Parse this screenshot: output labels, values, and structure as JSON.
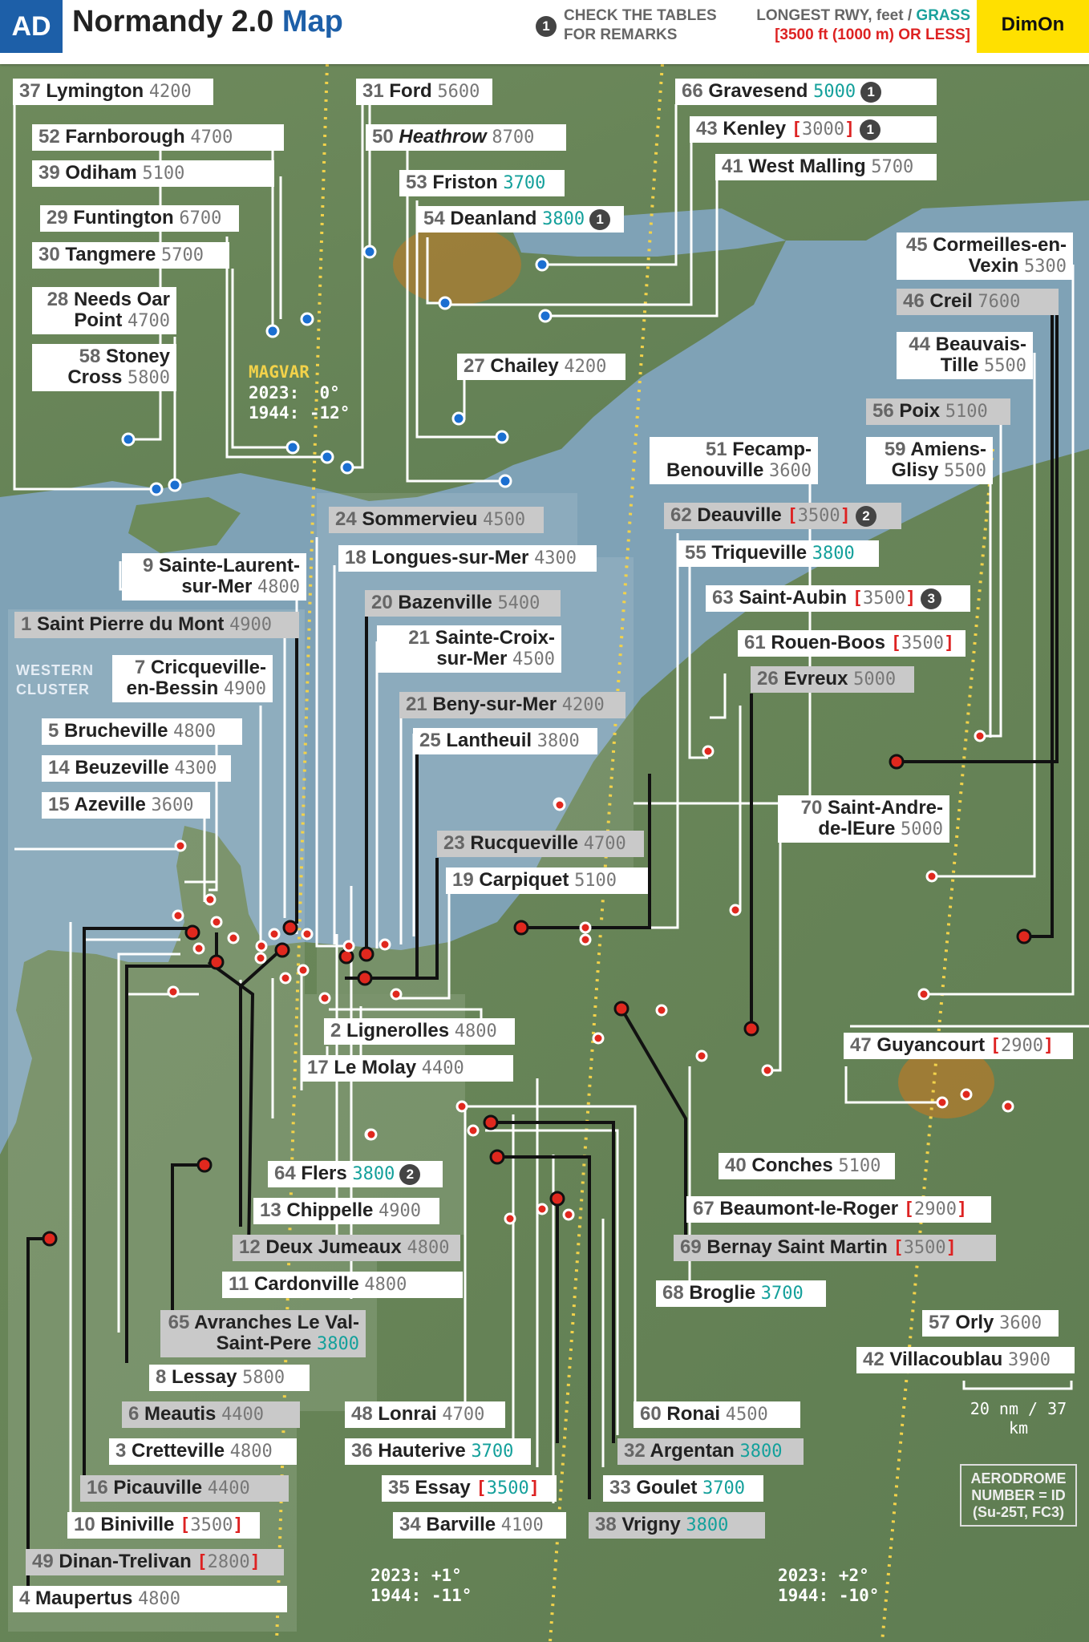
{
  "header": {
    "badge": "AD",
    "title_main": "Normandy 2.0",
    "title_accent": "Map",
    "note_number": "1",
    "note_line1": "CHECK THE TABLES",
    "note_line2": "FOR REMARKS",
    "rwy_line1_a": "LONGEST RWY, feet /",
    "rwy_line1_b": "GRASS",
    "rwy_line2": "[3500 ft (1000 m) OR LESS]",
    "brand": "DimOn"
  },
  "magvar": {
    "label": "MAGVAR",
    "west": "2023:  0°\n1944: -12°",
    "mid": "2023: +1°\n1944: -11°",
    "east": "2023: +2°\n1944: -10°"
  },
  "western_cluster": "WESTERN\nCLUSTER",
  "scale": "20 nm / 37 km",
  "legend": "AERODROME\nNUMBER = ID\n(Su-25T, FC3)",
  "colors": {
    "sea": "#7ea1b5",
    "land": "#6f8a5a",
    "accent": "#1d5fa8",
    "grass": "#14a09b",
    "short": "#d22222",
    "brand": "#ffe000"
  },
  "airfields": [
    {
      "id": "37",
      "name": "Lymington",
      "rwy": "4200",
      "type": "paved"
    },
    {
      "id": "52",
      "name": "Farnborough",
      "rwy": "4700",
      "type": "paved"
    },
    {
      "id": "39",
      "name": "Odiham",
      "rwy": "5100",
      "type": "paved"
    },
    {
      "id": "29",
      "name": "Funtington",
      "rwy": "6700",
      "type": "paved"
    },
    {
      "id": "30",
      "name": "Tangmere",
      "rwy": "5700",
      "type": "paved"
    },
    {
      "id": "28",
      "name": "Needs Oar Point",
      "rwy": "4700",
      "type": "paved"
    },
    {
      "id": "58",
      "name": "Stoney Cross",
      "rwy": "5800",
      "type": "paved"
    },
    {
      "id": "31",
      "name": "Ford",
      "rwy": "5600",
      "type": "paved"
    },
    {
      "id": "50",
      "name": "Heathrow",
      "rwy": "8700",
      "type": "paved"
    },
    {
      "id": "53",
      "name": "Friston",
      "rwy": "3700",
      "type": "grass"
    },
    {
      "id": "54",
      "name": "Deanland",
      "rwy": "3800",
      "type": "grass",
      "remark": "1"
    },
    {
      "id": "27",
      "name": "Chailey",
      "rwy": "4200",
      "type": "paved"
    },
    {
      "id": "66",
      "name": "Gravesend",
      "rwy": "5000",
      "type": "grass",
      "remark": "1"
    },
    {
      "id": "43",
      "name": "Kenley",
      "rwy": "3000",
      "type": "short",
      "remark": "1"
    },
    {
      "id": "41",
      "name": "West Malling",
      "rwy": "5700",
      "type": "paved"
    },
    {
      "id": "45",
      "name": "Cormeilles-en-Vexin",
      "rwy": "5300",
      "type": "paved"
    },
    {
      "id": "46",
      "name": "Creil",
      "rwy": "7600",
      "type": "paved"
    },
    {
      "id": "44",
      "name": "Beauvais-Tille",
      "rwy": "5500",
      "type": "paved"
    },
    {
      "id": "56",
      "name": "Poix",
      "rwy": "5100",
      "type": "paved"
    },
    {
      "id": "59",
      "name": "Amiens-Glisy",
      "rwy": "5500",
      "type": "paved"
    },
    {
      "id": "51",
      "name": "Fecamp-Benouville",
      "rwy": "3600",
      "type": "paved"
    },
    {
      "id": "62",
      "name": "Deauville",
      "rwy": "3500",
      "type": "short",
      "remark": "2"
    },
    {
      "id": "55",
      "name": "Triqueville",
      "rwy": "3800",
      "type": "grass"
    },
    {
      "id": "63",
      "name": "Saint-Aubin",
      "rwy": "3500",
      "type": "short",
      "remark": "3"
    },
    {
      "id": "61",
      "name": "Rouen-Boos",
      "rwy": "3500",
      "type": "short"
    },
    {
      "id": "26",
      "name": "Evreux",
      "rwy": "5000",
      "type": "paved"
    },
    {
      "id": "70",
      "name": "Saint-Andre-de-lEure",
      "rwy": "5000",
      "type": "paved"
    },
    {
      "id": "24",
      "name": "Sommervieu",
      "rwy": "4500",
      "type": "paved"
    },
    {
      "id": "18",
      "name": "Longues-sur-Mer",
      "rwy": "4300",
      "type": "paved"
    },
    {
      "id": "20",
      "name": "Bazenville",
      "rwy": "5400",
      "type": "paved"
    },
    {
      "id": "21",
      "name": "Sainte-Croix-sur-Mer",
      "rwy": "4500",
      "type": "paved"
    },
    {
      "id": "21b",
      "name": "Beny-sur-Mer",
      "rwy": "4200",
      "type": "paved"
    },
    {
      "id": "25",
      "name": "Lantheuil",
      "rwy": "3800",
      "type": "paved"
    },
    {
      "id": "23",
      "name": "Rucqueville",
      "rwy": "4700",
      "type": "paved"
    },
    {
      "id": "19",
      "name": "Carpiquet",
      "rwy": "5100",
      "type": "paved"
    },
    {
      "id": "9",
      "name": "Sainte-Laurent-sur-Mer",
      "rwy": "4800",
      "type": "paved"
    },
    {
      "id": "1",
      "name": "Saint Pierre du Mont",
      "rwy": "4900",
      "type": "paved"
    },
    {
      "id": "7",
      "name": "Cricqueville-en-Bessin",
      "rwy": "4900",
      "type": "paved"
    },
    {
      "id": "5",
      "name": "Brucheville",
      "rwy": "4800",
      "type": "paved"
    },
    {
      "id": "14",
      "name": "Beuzeville",
      "rwy": "4300",
      "type": "paved"
    },
    {
      "id": "15",
      "name": "Azeville",
      "rwy": "3600",
      "type": "paved"
    },
    {
      "id": "2",
      "name": "Lignerolles",
      "rwy": "4800",
      "type": "paved"
    },
    {
      "id": "17",
      "name": "Le Molay",
      "rwy": "4400",
      "type": "paved"
    },
    {
      "id": "47",
      "name": "Guyancourt",
      "rwy": "2900",
      "type": "short"
    },
    {
      "id": "40",
      "name": "Conches",
      "rwy": "5100",
      "type": "paved"
    },
    {
      "id": "67",
      "name": "Beaumont-le-Roger",
      "rwy": "2900",
      "type": "short"
    },
    {
      "id": "69",
      "name": "Bernay Saint Martin",
      "rwy": "3500",
      "type": "short"
    },
    {
      "id": "68",
      "name": "Broglie",
      "rwy": "3700",
      "type": "grass"
    },
    {
      "id": "64",
      "name": "Flers",
      "rwy": "3800",
      "type": "grass",
      "remark": "2"
    },
    {
      "id": "13",
      "name": "Chippelle",
      "rwy": "4900",
      "type": "paved"
    },
    {
      "id": "12",
      "name": "Deux Jumeaux",
      "rwy": "4800",
      "type": "paved"
    },
    {
      "id": "11",
      "name": "Cardonville",
      "rwy": "4800",
      "type": "paved"
    },
    {
      "id": "65",
      "name": "Avranches Le Val-Saint-Pere",
      "rwy": "3800",
      "type": "grass"
    },
    {
      "id": "8",
      "name": "Lessay",
      "rwy": "5800",
      "type": "paved"
    },
    {
      "id": "6",
      "name": "Meautis",
      "rwy": "4400",
      "type": "paved"
    },
    {
      "id": "3",
      "name": "Cretteville",
      "rwy": "4800",
      "type": "paved"
    },
    {
      "id": "16",
      "name": "Picauville",
      "rwy": "4400",
      "type": "paved"
    },
    {
      "id": "10",
      "name": "Biniville",
      "rwy": "3500",
      "type": "short"
    },
    {
      "id": "49",
      "name": "Dinan-Trelivan",
      "rwy": "2800",
      "type": "short"
    },
    {
      "id": "4",
      "name": "Maupertus",
      "rwy": "4800",
      "type": "paved"
    },
    {
      "id": "48",
      "name": "Lonrai",
      "rwy": "4700",
      "type": "paved"
    },
    {
      "id": "36",
      "name": "Hauterive",
      "rwy": "3700",
      "type": "grass"
    },
    {
      "id": "35",
      "name": "Essay",
      "rwy": "3500",
      "type": "short-grass"
    },
    {
      "id": "34",
      "name": "Barville",
      "rwy": "4100",
      "type": "paved"
    },
    {
      "id": "60",
      "name": "Ronai",
      "rwy": "4500",
      "type": "paved"
    },
    {
      "id": "32",
      "name": "Argentan",
      "rwy": "3800",
      "type": "grass"
    },
    {
      "id": "33",
      "name": "Goulet",
      "rwy": "3700",
      "type": "grass"
    },
    {
      "id": "38",
      "name": "Vrigny",
      "rwy": "3800",
      "type": "grass"
    },
    {
      "id": "57",
      "name": "Orly",
      "rwy": "3600",
      "type": "paved"
    },
    {
      "id": "42",
      "name": "Villacoublau",
      "rwy": "3900",
      "type": "paved"
    }
  ]
}
